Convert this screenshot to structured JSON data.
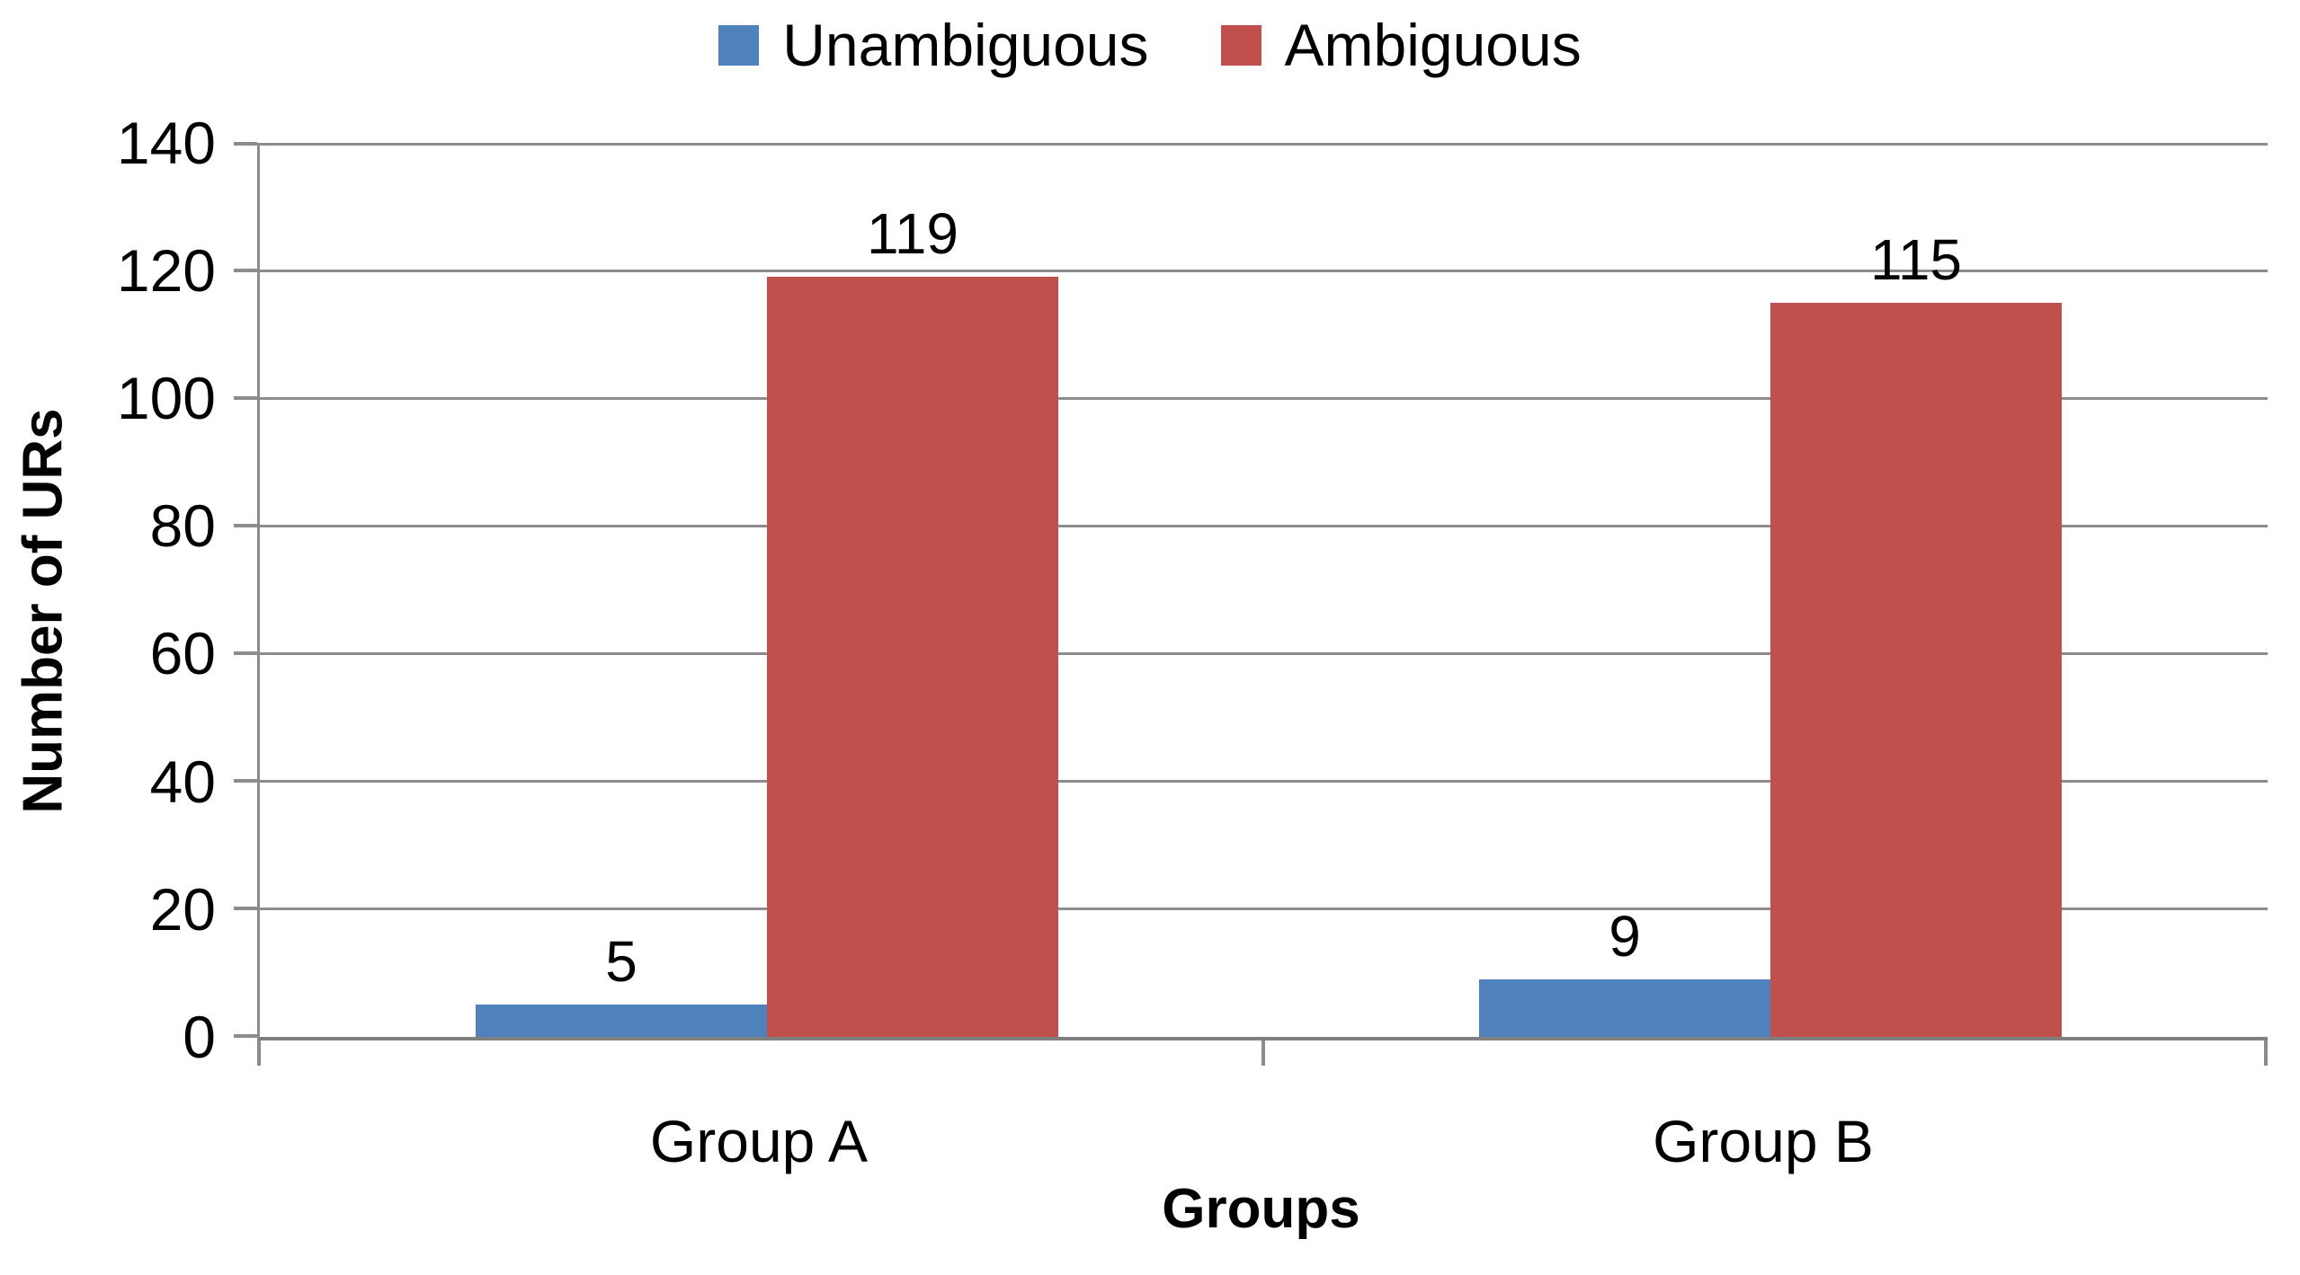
{
  "chart_data": {
    "type": "bar",
    "title": "",
    "categories": [
      "Group A",
      "Group B"
    ],
    "series": [
      {
        "name": "Unambiguous",
        "color": "#4F81BD",
        "values": [
          5,
          9
        ]
      },
      {
        "name": "Ambiguous",
        "color": "#C0504D",
        "values": [
          119,
          115
        ]
      }
    ],
    "xlabel": "Groups",
    "ylabel": "Number of URs",
    "ylim": [
      0,
      140
    ],
    "ytick_step": 20,
    "y_ticks": [
      "140",
      "120",
      "100",
      "80",
      "60",
      "40",
      "20",
      "0"
    ],
    "grid": "horizontal gray lines",
    "legend_position": "top center",
    "data_labels_shown": true,
    "axis_color": "#8C8C8C"
  }
}
